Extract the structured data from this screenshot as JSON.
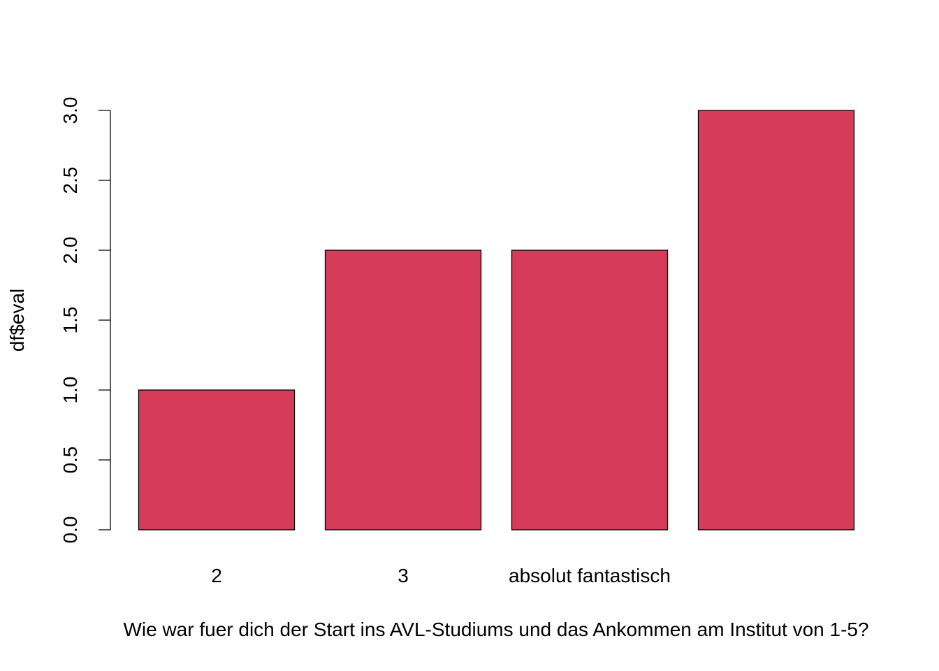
{
  "chart_data": {
    "type": "bar",
    "categories": [
      "2",
      "3",
      "absolut fantastisch",
      ""
    ],
    "values": [
      1,
      2,
      2,
      3
    ],
    "xlabel": "Wie war fuer dich der Start ins AVL-Studiums und das Ankommen am Institut von 1-5?",
    "ylabel": "df$eval",
    "ylim": [
      0,
      3
    ],
    "y_ticks": [
      "0.0",
      "0.5",
      "1.0",
      "1.5",
      "2.0",
      "2.5",
      "3.0"
    ],
    "bar_color": "#d63c5a",
    "grid": false,
    "legend": "none"
  }
}
